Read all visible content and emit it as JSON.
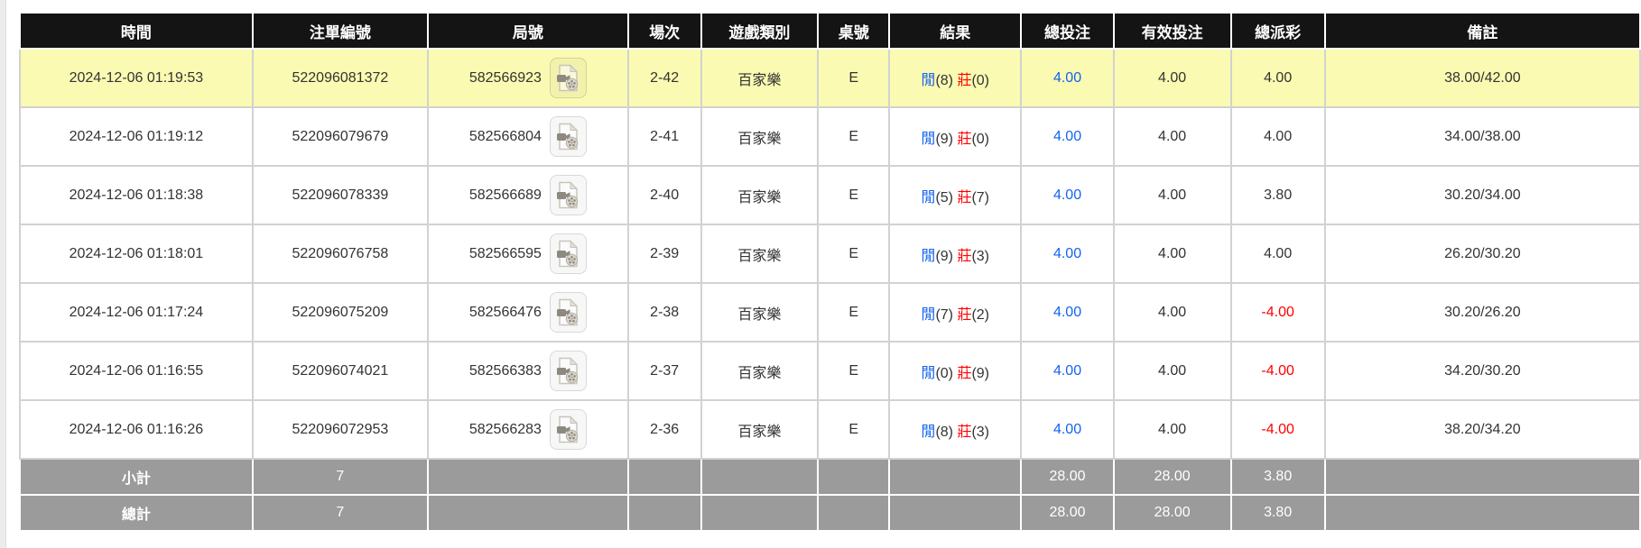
{
  "table": {
    "columns": [
      {
        "key": "time",
        "label": "時間"
      },
      {
        "key": "bet_id",
        "label": "注單編號"
      },
      {
        "key": "round_id",
        "label": "局號"
      },
      {
        "key": "session",
        "label": "場次"
      },
      {
        "key": "game_type",
        "label": "遊戲類別"
      },
      {
        "key": "table_no",
        "label": "桌號"
      },
      {
        "key": "result",
        "label": "結果"
      },
      {
        "key": "total_bet",
        "label": "總投注"
      },
      {
        "key": "valid_bet",
        "label": "有效投注"
      },
      {
        "key": "payout",
        "label": "總派彩"
      },
      {
        "key": "remark",
        "label": "備註"
      }
    ],
    "result_labels": {
      "player": "閒",
      "banker": "莊"
    },
    "icon_name": "video-replay-icon",
    "rows": [
      {
        "time": "2024-12-06 01:19:53",
        "bet_id": "522096081372",
        "round_id": "582566923",
        "session": "2-42",
        "game_type": "百家樂",
        "table_no": "E",
        "result_player": "8",
        "result_banker": "0",
        "total_bet": "4.00",
        "valid_bet": "4.00",
        "payout": "4.00",
        "remark": "38.00/42.00",
        "highlighted": true
      },
      {
        "time": "2024-12-06 01:19:12",
        "bet_id": "522096079679",
        "round_id": "582566804",
        "session": "2-41",
        "game_type": "百家樂",
        "table_no": "E",
        "result_player": "9",
        "result_banker": "0",
        "total_bet": "4.00",
        "valid_bet": "4.00",
        "payout": "4.00",
        "remark": "34.00/38.00",
        "highlighted": false
      },
      {
        "time": "2024-12-06 01:18:38",
        "bet_id": "522096078339",
        "round_id": "582566689",
        "session": "2-40",
        "game_type": "百家樂",
        "table_no": "E",
        "result_player": "5",
        "result_banker": "7",
        "total_bet": "4.00",
        "valid_bet": "4.00",
        "payout": "3.80",
        "remark": "30.20/34.00",
        "highlighted": false
      },
      {
        "time": "2024-12-06 01:18:01",
        "bet_id": "522096076758",
        "round_id": "582566595",
        "session": "2-39",
        "game_type": "百家樂",
        "table_no": "E",
        "result_player": "9",
        "result_banker": "3",
        "total_bet": "4.00",
        "valid_bet": "4.00",
        "payout": "4.00",
        "remark": "26.20/30.20",
        "highlighted": false
      },
      {
        "time": "2024-12-06 01:17:24",
        "bet_id": "522096075209",
        "round_id": "582566476",
        "session": "2-38",
        "game_type": "百家樂",
        "table_no": "E",
        "result_player": "7",
        "result_banker": "2",
        "total_bet": "4.00",
        "valid_bet": "4.00",
        "payout": "-4.00",
        "remark": "30.20/26.20",
        "highlighted": false
      },
      {
        "time": "2024-12-06 01:16:55",
        "bet_id": "522096074021",
        "round_id": "582566383",
        "session": "2-37",
        "game_type": "百家樂",
        "table_no": "E",
        "result_player": "0",
        "result_banker": "9",
        "total_bet": "4.00",
        "valid_bet": "4.00",
        "payout": "-4.00",
        "remark": "34.20/30.20",
        "highlighted": false
      },
      {
        "time": "2024-12-06 01:16:26",
        "bet_id": "522096072953",
        "round_id": "582566283",
        "session": "2-36",
        "game_type": "百家樂",
        "table_no": "E",
        "result_player": "8",
        "result_banker": "3",
        "total_bet": "4.00",
        "valid_bet": "4.00",
        "payout": "-4.00",
        "remark": "38.20/34.20",
        "highlighted": false
      }
    ],
    "summary_rows": [
      {
        "label": "小計",
        "count": "7",
        "total_bet": "28.00",
        "valid_bet": "28.00",
        "payout": "3.80"
      },
      {
        "label": "總計",
        "count": "7",
        "total_bet": "28.00",
        "valid_bet": "28.00",
        "payout": "3.80"
      }
    ]
  },
  "colors": {
    "header_bg": "#141414",
    "highlight_row": "#FAFAB2",
    "summary_bg": "#9B9B9B",
    "link_blue": "#1563F0",
    "player_blue": "#1563F0",
    "banker_red": "#FF0000",
    "negative_payout_red": "#FF0000"
  }
}
